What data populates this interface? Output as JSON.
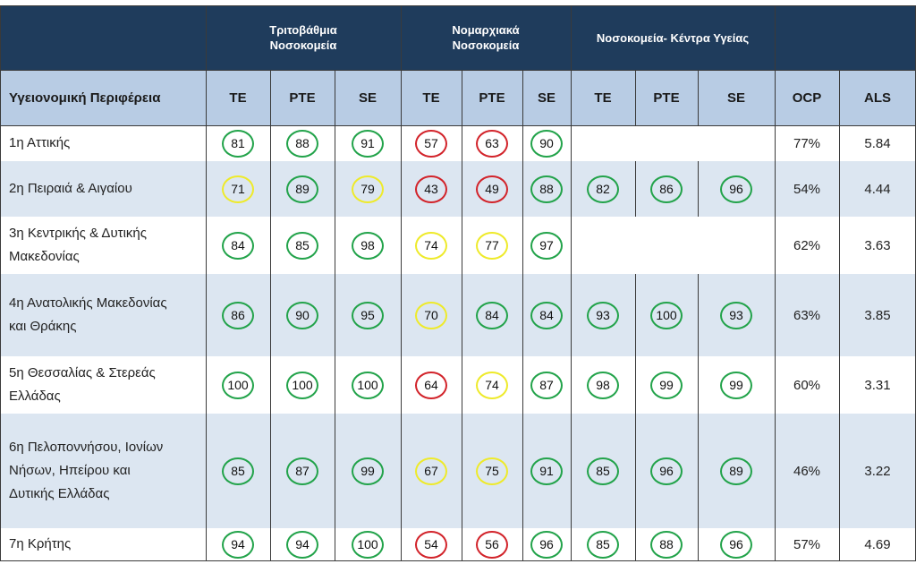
{
  "groups": [
    {
      "label": "Τριτοβάθμια\nΝοσοκομεία"
    },
    {
      "label": "Νομαρχιακά\nΝοσοκομεία"
    },
    {
      "label": "Νοσοκομεία- Κέντρα Υγείας"
    }
  ],
  "columns": [
    "Υγειονομική Περιφέρεια",
    "TE",
    "PTE",
    "SE",
    "TE",
    "PTE",
    "SE",
    "TE",
    "PTE",
    "SE",
    "OCP",
    "ALS"
  ],
  "legend_colors": {
    "green": "#22a34a",
    "yellow": "#eeea2a",
    "red": "#d2232a"
  },
  "rows": [
    {
      "region": "1η Αττικής",
      "scores": [
        [
          "81",
          "green"
        ],
        [
          "88",
          "green"
        ],
        [
          "91",
          "green"
        ],
        [
          "57",
          "red"
        ],
        [
          "63",
          "red"
        ],
        [
          "90",
          "green"
        ],
        null,
        null,
        null
      ],
      "ocp": "77%",
      "als": "5.84"
    },
    {
      "region": "2η Πειραιά & Αιγαίου",
      "scores": [
        [
          "71",
          "yellow"
        ],
        [
          "89",
          "green"
        ],
        [
          "79",
          "yellow"
        ],
        [
          "43",
          "red"
        ],
        [
          "49",
          "red"
        ],
        [
          "88",
          "green"
        ],
        [
          "82",
          "green"
        ],
        [
          "86",
          "green"
        ],
        [
          "96",
          "green"
        ]
      ],
      "ocp": "54%",
      "als": "4.44"
    },
    {
      "region": "3η Κεντρικής & Δυτικής\nΜακεδονίας",
      "scores": [
        [
          "84",
          "green"
        ],
        [
          "85",
          "green"
        ],
        [
          "98",
          "green"
        ],
        [
          "74",
          "yellow"
        ],
        [
          "77",
          "yellow"
        ],
        [
          "97",
          "green"
        ],
        null,
        null,
        null
      ],
      "ocp": "62%",
      "als": "3.63"
    },
    {
      "region": "4η Ανατολικής Μακεδονίας\nκαι Θράκης",
      "scores": [
        [
          "86",
          "green"
        ],
        [
          "90",
          "green"
        ],
        [
          "95",
          "green"
        ],
        [
          "70",
          "yellow"
        ],
        [
          "84",
          "green"
        ],
        [
          "84",
          "green"
        ],
        [
          "93",
          "green"
        ],
        [
          "100",
          "green"
        ],
        [
          "93",
          "green"
        ]
      ],
      "ocp": "63%",
      "als": "3.85"
    },
    {
      "region": "5η Θεσσαλίας & Στερεάς\nΕλλάδας",
      "scores": [
        [
          "100",
          "green"
        ],
        [
          "100",
          "green"
        ],
        [
          "100",
          "green"
        ],
        [
          "64",
          "red"
        ],
        [
          "74",
          "yellow"
        ],
        [
          "87",
          "green"
        ],
        [
          "98",
          "green"
        ],
        [
          "99",
          "green"
        ],
        [
          "99",
          "green"
        ]
      ],
      "ocp": "60%",
      "als": "3.31"
    },
    {
      "region": "6η Πελοποννήσου, Ιονίων\nΝήσων, Ηπείρου και\nΔυτικής Ελλάδας",
      "scores": [
        [
          "85",
          "green"
        ],
        [
          "87",
          "green"
        ],
        [
          "99",
          "green"
        ],
        [
          "67",
          "yellow"
        ],
        [
          "75",
          "yellow"
        ],
        [
          "91",
          "green"
        ],
        [
          "85",
          "green"
        ],
        [
          "96",
          "green"
        ],
        [
          "89",
          "green"
        ]
      ],
      "ocp": "46%",
      "als": "3.22"
    },
    {
      "region": "7η Κρήτης",
      "scores": [
        [
          "94",
          "green"
        ],
        [
          "94",
          "green"
        ],
        [
          "100",
          "green"
        ],
        [
          "54",
          "red"
        ],
        [
          "56",
          "red"
        ],
        [
          "96",
          "green"
        ],
        [
          "85",
          "green"
        ],
        [
          "88",
          "green"
        ],
        [
          "96",
          "green"
        ]
      ],
      "ocp": "57%",
      "als": "4.69"
    }
  ]
}
